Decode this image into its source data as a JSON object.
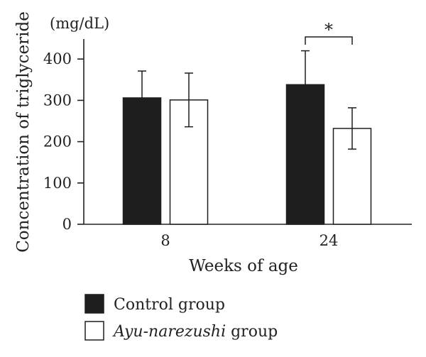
{
  "chart_data": {
    "type": "bar",
    "categories": [
      "8",
      "24"
    ],
    "series": [
      {
        "name": "Control group",
        "values": [
          306,
          338
        ],
        "errors": [
          65,
          82
        ],
        "color": "#1e1e1e"
      },
      {
        "name": "Ayu-narezushi group",
        "name_parts": [
          "Ayu-narezushi",
          " group"
        ],
        "values": [
          301,
          232
        ],
        "errors": [
          65,
          50
        ],
        "color": "#ffffff"
      }
    ],
    "xlabel": "Weeks of age",
    "ylabel": "Concentration of triglyceride",
    "unit": "(mg/dL)",
    "ylim": [
      0,
      470
    ],
    "yticks": [
      0,
      100,
      200,
      300,
      400
    ],
    "grid": false,
    "legend_position": "bottom-left",
    "significance": [
      {
        "category": "24",
        "label": "*"
      }
    ]
  }
}
